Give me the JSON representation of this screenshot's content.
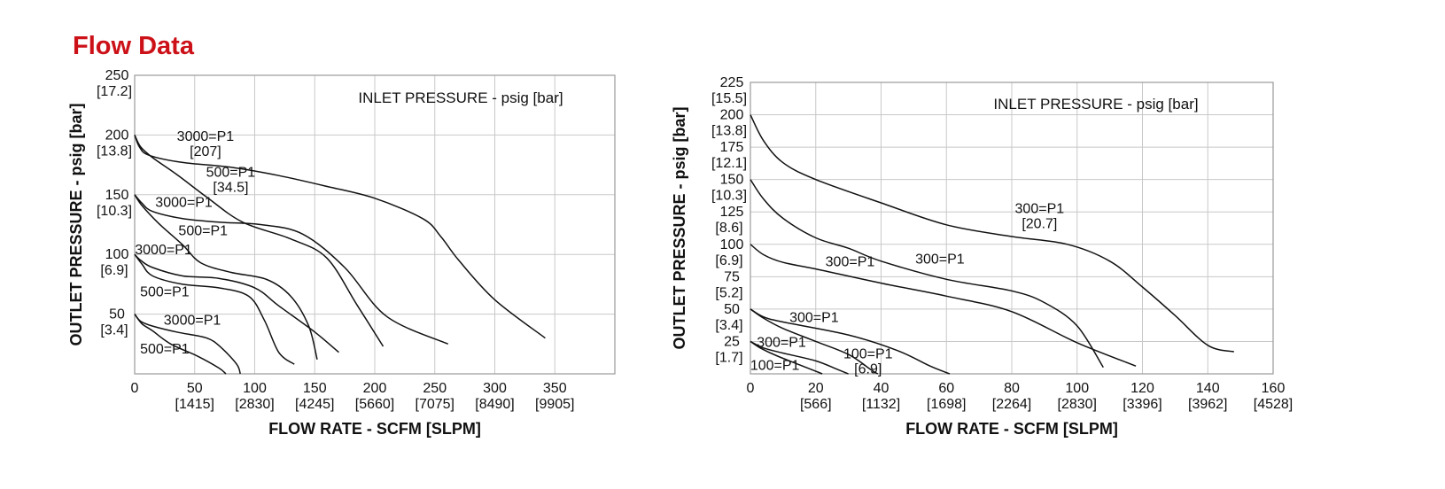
{
  "page": {
    "title": "Flow Data"
  },
  "chart_data": [
    {
      "type": "line",
      "annotation": "INLET PRESSURE - psig [bar]",
      "xlabel": "FLOW RATE - SCFM [SLPM]",
      "ylabel": "OUTLET PRESSURE - psig [bar]",
      "xlim": [
        0,
        400
      ],
      "ylim": [
        0,
        250
      ],
      "grid": true,
      "x_ticks": [
        {
          "value": 0,
          "label": "0",
          "sub": ""
        },
        {
          "value": 50,
          "label": "50",
          "sub": "[1415]"
        },
        {
          "value": 100,
          "label": "100",
          "sub": "[2830]"
        },
        {
          "value": 150,
          "label": "150",
          "sub": "[4245]"
        },
        {
          "value": 200,
          "label": "200",
          "sub": "[5660]"
        },
        {
          "value": 250,
          "label": "250",
          "sub": "[7075]"
        },
        {
          "value": 300,
          "label": "300",
          "sub": "[8490]"
        },
        {
          "value": 350,
          "label": "350",
          "sub": "[9905]"
        }
      ],
      "y_ticks": [
        {
          "value": 250,
          "label": "250",
          "sub": "[17.2]"
        },
        {
          "value": 200,
          "label": "200",
          "sub": "[13.8]"
        },
        {
          "value": 150,
          "label": "150",
          "sub": "[10.3]"
        },
        {
          "value": 100,
          "label": "100",
          "sub": "[6.9]"
        },
        {
          "value": 50,
          "label": "50",
          "sub": "[3.4]"
        }
      ],
      "curve_labels": [
        {
          "text": "3000=P1",
          "sub": "[207]",
          "x": 59,
          "y": 195
        },
        {
          "text": "500=P1",
          "sub": "[34.5]",
          "x": 80,
          "y": 165
        },
        {
          "text": "3000=P1",
          "sub": "",
          "x": 41,
          "y": 140
        },
        {
          "text": "500=P1",
          "sub": "",
          "x": 57,
          "y": 116
        },
        {
          "text": "3000=P1",
          "sub": "",
          "x": 24,
          "y": 100
        },
        {
          "text": "500=P1",
          "sub": "",
          "x": 25,
          "y": 65
        },
        {
          "text": "3000=P1",
          "sub": "",
          "x": 48,
          "y": 41
        },
        {
          "text": "500=P1",
          "sub": "",
          "x": 25,
          "y": 17
        }
      ],
      "series": [
        {
          "values": [
            [
              0,
              200
            ],
            [
              4,
              190
            ],
            [
              12,
              183
            ],
            [
              40,
              177
            ],
            [
              80,
              173
            ],
            [
              120,
              166
            ],
            [
              160,
              157
            ],
            [
              200,
              147
            ],
            [
              240,
              130
            ],
            [
              255,
              115
            ],
            [
              270,
              95
            ],
            [
              300,
              62
            ],
            [
              342,
              30
            ]
          ]
        },
        {
          "values": [
            [
              0,
              200
            ],
            [
              5,
              190
            ],
            [
              15,
              181
            ],
            [
              35,
              167
            ],
            [
              60,
              148
            ],
            [
              90,
              127
            ],
            [
              130,
              113
            ],
            [
              160,
              97
            ],
            [
              185,
              58
            ],
            [
              207,
              23
            ]
          ]
        },
        {
          "values": [
            [
              0,
              150
            ],
            [
              6,
              143
            ],
            [
              15,
              136
            ],
            [
              40,
              130
            ],
            [
              70,
              127
            ],
            [
              105,
              125
            ],
            [
              140,
              117
            ],
            [
              175,
              89
            ],
            [
              210,
              48
            ],
            [
              261,
              25
            ]
          ]
        },
        {
          "values": [
            [
              0,
              150
            ],
            [
              6,
              141
            ],
            [
              20,
              126
            ],
            [
              40,
              108
            ],
            [
              55,
              93
            ],
            [
              80,
              85
            ],
            [
              110,
              79
            ],
            [
              130,
              65
            ],
            [
              145,
              40
            ],
            [
              152,
              12
            ]
          ]
        },
        {
          "values": [
            [
              0,
              100
            ],
            [
              5,
              95
            ],
            [
              15,
              89
            ],
            [
              40,
              82
            ],
            [
              70,
              80
            ],
            [
              100,
              72
            ],
            [
              120,
              57
            ],
            [
              150,
              35
            ],
            [
              170,
              18
            ]
          ]
        },
        {
          "values": [
            [
              0,
              100
            ],
            [
              6,
              92
            ],
            [
              15,
              82
            ],
            [
              40,
              75
            ],
            [
              70,
              72
            ],
            [
              95,
              65
            ],
            [
              108,
              45
            ],
            [
              120,
              18
            ],
            [
              133,
              8
            ]
          ]
        },
        {
          "values": [
            [
              0,
              50
            ],
            [
              5,
              44
            ],
            [
              15,
              40
            ],
            [
              35,
              35
            ],
            [
              60,
              30
            ],
            [
              72,
              22
            ],
            [
              85,
              8
            ],
            [
              88,
              0
            ]
          ]
        },
        {
          "values": [
            [
              0,
              50
            ],
            [
              6,
              42
            ],
            [
              15,
              36
            ],
            [
              30,
              25
            ],
            [
              52,
              15
            ],
            [
              70,
              5
            ],
            [
              76,
              0
            ]
          ]
        }
      ]
    },
    {
      "type": "line",
      "annotation": "INLET PRESSURE - psig [bar]",
      "xlabel": "FLOW RATE - SCFM [SLPM]",
      "ylabel": "OUTLET PRESSURE - psig [bar]",
      "xlim": [
        0,
        160
      ],
      "ylim": [
        0,
        225
      ],
      "grid": true,
      "x_ticks": [
        {
          "value": 0,
          "label": "0",
          "sub": ""
        },
        {
          "value": 20,
          "label": "20",
          "sub": "[566]"
        },
        {
          "value": 40,
          "label": "40",
          "sub": "[1132]"
        },
        {
          "value": 60,
          "label": "60",
          "sub": "[1698]"
        },
        {
          "value": 80,
          "label": "80",
          "sub": "[2264]"
        },
        {
          "value": 100,
          "label": "100",
          "sub": "[2830]"
        },
        {
          "value": 120,
          "label": "120",
          "sub": "[3396]"
        },
        {
          "value": 140,
          "label": "140",
          "sub": "[3962]"
        },
        {
          "value": 160,
          "label": "160",
          "sub": "[4528]"
        }
      ],
      "y_ticks": [
        {
          "value": 225,
          "label": "225",
          "sub": "[15.5]"
        },
        {
          "value": 200,
          "label": "200",
          "sub": "[13.8]"
        },
        {
          "value": 175,
          "label": "175",
          "sub": "[12.1]"
        },
        {
          "value": 150,
          "label": "150",
          "sub": "[10.3]"
        },
        {
          "value": 125,
          "label": "125",
          "sub": "[8.6]"
        },
        {
          "value": 100,
          "label": "100",
          "sub": "[6.9]"
        },
        {
          "value": 75,
          "label": "75",
          "sub": "[5.2]"
        },
        {
          "value": 50,
          "label": "50",
          "sub": "[3.4]"
        },
        {
          "value": 25,
          "label": "25",
          "sub": "[1.7]"
        }
      ],
      "curve_labels": [
        {
          "text": "300=P1",
          "sub": "[20.7]",
          "x": 88.5,
          "y": 124
        },
        {
          "text": "300=P1",
          "sub": "",
          "x": 58,
          "y": 85
        },
        {
          "text": "300=P1",
          "sub": "",
          "x": 30.5,
          "y": 83
        },
        {
          "text": "300=P1",
          "sub": "",
          "x": 19.5,
          "y": 40
        },
        {
          "text": "300=P1",
          "sub": "",
          "x": 9.5,
          "y": 21
        },
        {
          "text": "100=P1",
          "sub": "[6.9]",
          "x": 36,
          "y": 12
        },
        {
          "text": "100=P1",
          "sub": "",
          "x": 7.5,
          "y": 3
        }
      ],
      "series": [
        {
          "values": [
            [
              0,
              200
            ],
            [
              4,
              180
            ],
            [
              10,
              163
            ],
            [
              20,
              150
            ],
            [
              40,
              132
            ],
            [
              60,
              115
            ],
            [
              80,
              106
            ],
            [
              97,
              100
            ],
            [
              110,
              87
            ],
            [
              120,
              67
            ],
            [
              130,
              45
            ],
            [
              140,
              22
            ],
            [
              148,
              17
            ]
          ]
        },
        {
          "values": [
            [
              0,
              150
            ],
            [
              4,
              135
            ],
            [
              10,
              120
            ],
            [
              20,
              105
            ],
            [
              30,
              97
            ],
            [
              40,
              87
            ],
            [
              60,
              73
            ],
            [
              80,
              64
            ],
            [
              90,
              55
            ],
            [
              100,
              37
            ],
            [
              108,
              5
            ]
          ]
        },
        {
          "values": [
            [
              0,
              100
            ],
            [
              4,
              92
            ],
            [
              10,
              86
            ],
            [
              20,
              81
            ],
            [
              40,
              70
            ],
            [
              60,
              60
            ],
            [
              80,
              48
            ],
            [
              100,
              24
            ],
            [
              118,
              6
            ]
          ]
        },
        {
          "values": [
            [
              0,
              50
            ],
            [
              4,
              44
            ],
            [
              10,
              40
            ],
            [
              30,
              30
            ],
            [
              45,
              18
            ],
            [
              55,
              6
            ],
            [
              61,
              0
            ]
          ]
        },
        {
          "values": [
            [
              0,
              50
            ],
            [
              4,
              43
            ],
            [
              10,
              35
            ],
            [
              20,
              25
            ],
            [
              30,
              15
            ],
            [
              37,
              3
            ],
            [
              39,
              0
            ]
          ]
        },
        {
          "values": [
            [
              0,
              25
            ],
            [
              4,
              20
            ],
            [
              10,
              16
            ],
            [
              20,
              10
            ],
            [
              27,
              3
            ],
            [
              30,
              0
            ]
          ]
        },
        {
          "values": [
            [
              0,
              25
            ],
            [
              3,
              20
            ],
            [
              8,
              14
            ],
            [
              15,
              7
            ],
            [
              20,
              2
            ],
            [
              22,
              0
            ]
          ]
        }
      ]
    }
  ]
}
